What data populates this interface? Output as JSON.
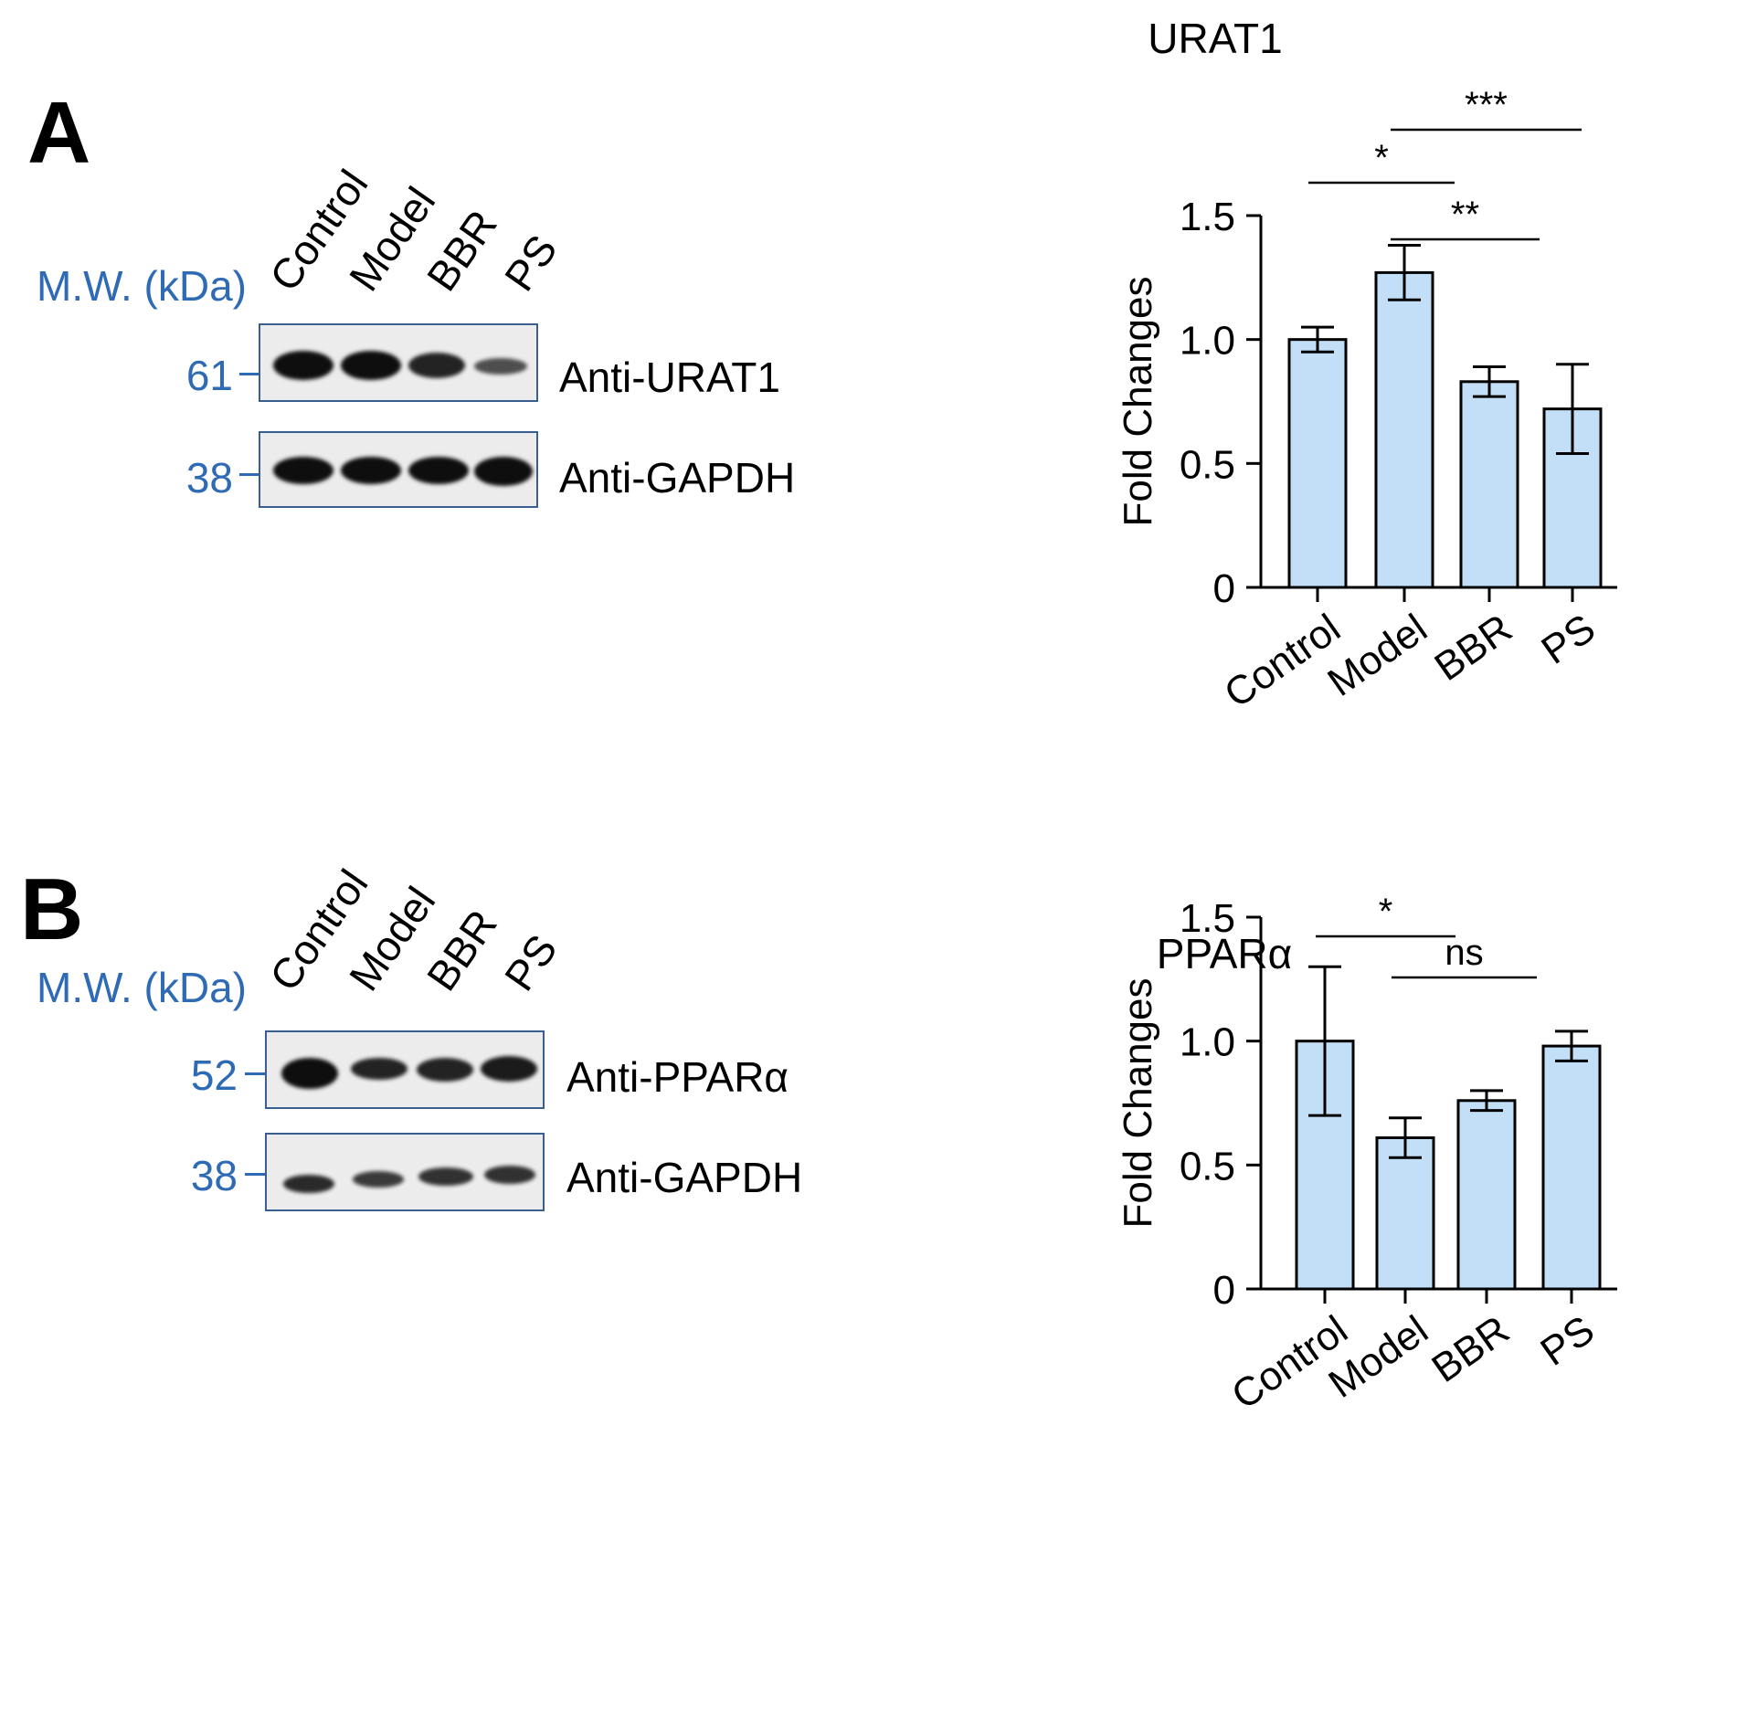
{
  "panels": [
    {
      "letter": "A",
      "mw_header": "M.W. (kDa)",
      "lanes": [
        "Control",
        "Model",
        "BBR",
        "PS"
      ],
      "blots": [
        {
          "mw": "61",
          "antibody": "Anti-URAT1",
          "band_intensity": [
            1.0,
            1.0,
            0.85,
            0.55
          ]
        },
        {
          "mw": "38",
          "antibody": "Anti-GAPDH",
          "band_intensity": [
            1.0,
            1.0,
            1.0,
            1.0
          ]
        }
      ]
    },
    {
      "letter": "B",
      "mw_header": "M.W. (kDa)",
      "lanes": [
        "Control",
        "Model",
        "BBR",
        "PS"
      ],
      "blots": [
        {
          "mw": "52",
          "antibody": "Anti-PPARα",
          "band_intensity": [
            1.0,
            0.85,
            0.85,
            0.9
          ]
        },
        {
          "mw": "38",
          "antibody": "Anti-GAPDH",
          "band_intensity": [
            0.8,
            0.7,
            0.75,
            0.75
          ]
        }
      ]
    }
  ],
  "colors": {
    "bar_fill": "#c3dff7",
    "mw_text": "#2e6bb4",
    "axis": "#000000"
  },
  "chart_data": [
    {
      "type": "bar",
      "title": "URAT1",
      "ylabel": "Fold Changes",
      "xlabel": "",
      "categories": [
        "Control",
        "Model",
        "BBR",
        "PS"
      ],
      "values": [
        1.0,
        1.27,
        0.83,
        0.72
      ],
      "errors": [
        0.05,
        0.11,
        0.06,
        0.18
      ],
      "ylim": [
        0,
        1.5
      ],
      "yticks": [
        0,
        0.5,
        1.0,
        1.5
      ],
      "ytick_labels": [
        "0",
        "0.5",
        "1.0",
        "1.5"
      ],
      "significance": [
        {
          "from": "Control",
          "to": "Model",
          "label": "*",
          "level": 1
        },
        {
          "from": "Model",
          "to": "BBR",
          "label": "**",
          "level": 0
        },
        {
          "from": "Model",
          "to": "PS",
          "label": "***",
          "level": 2
        }
      ]
    },
    {
      "type": "bar",
      "title": "PPARα",
      "ylabel": "Fold Changes",
      "xlabel": "",
      "categories": [
        "Control",
        "Model",
        "BBR",
        "PS"
      ],
      "values": [
        1.0,
        0.61,
        0.76,
        0.98
      ],
      "errors": [
        0.3,
        0.08,
        0.04,
        0.06
      ],
      "ylim": [
        0,
        1.5
      ],
      "yticks": [
        0,
        0.5,
        1.0,
        1.5
      ],
      "ytick_labels": [
        "0",
        "0.5",
        "1.0",
        "1.5"
      ],
      "significance": [
        {
          "from": "Model",
          "to": "BBR",
          "label": "ns",
          "level": 0
        },
        {
          "from": "Control",
          "to": "Model",
          "label": "*",
          "level": 1
        },
        {
          "from": "Model",
          "to": "PS",
          "label": "*",
          "level": 2
        }
      ]
    }
  ]
}
